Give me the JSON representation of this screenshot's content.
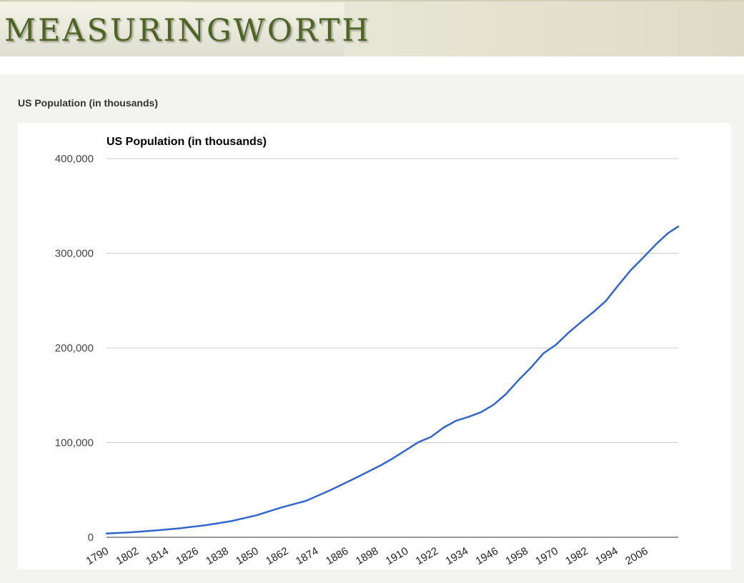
{
  "site": {
    "logo_text": "MEASURINGWORTH",
    "colors": {
      "logo": "#4e6425",
      "background": "#f4f4ee",
      "line": "#3366cc"
    }
  },
  "page": {
    "section_title": "US Population (in thousands)"
  },
  "chart_data": {
    "type": "line",
    "title": "US Population (in thousands)",
    "xlabel": "",
    "ylabel": "",
    "xlim": [
      1790,
      2019
    ],
    "ylim": [
      0,
      400000
    ],
    "yticks": [
      0,
      100000,
      200000,
      300000,
      400000
    ],
    "ytick_labels": [
      "0",
      "100,000",
      "200,000",
      "300,000",
      "400,000"
    ],
    "xticks": [
      1790,
      1802,
      1814,
      1826,
      1838,
      1850,
      1862,
      1874,
      1886,
      1898,
      1910,
      1922,
      1934,
      1946,
      1958,
      1970,
      1982,
      1994,
      2006
    ],
    "grid": true,
    "legend": "none",
    "series": [
      {
        "color": "#3366cc",
        "x": [
          1790,
          1800,
          1810,
          1820,
          1830,
          1840,
          1850,
          1860,
          1870,
          1880,
          1890,
          1900,
          1905,
          1910,
          1915,
          1920,
          1925,
          1930,
          1935,
          1940,
          1945,
          1950,
          1955,
          1960,
          1965,
          1970,
          1975,
          1980,
          1985,
          1990,
          1995,
          2000,
          2005,
          2010,
          2015,
          2019
        ],
        "y": [
          3929,
          5308,
          7240,
          9638,
          12866,
          17069,
          23192,
          31443,
          38558,
          50189,
          62980,
          76212,
          83822,
          92228,
          100546,
          106021,
          115829,
          123077,
          127250,
          132164,
          139928,
          151326,
          165931,
          179323,
          194303,
          203302,
          215973,
          227225,
          237924,
          249623,
          266278,
          282172,
          295517,
          309327,
          321419,
          328240
        ]
      }
    ]
  }
}
